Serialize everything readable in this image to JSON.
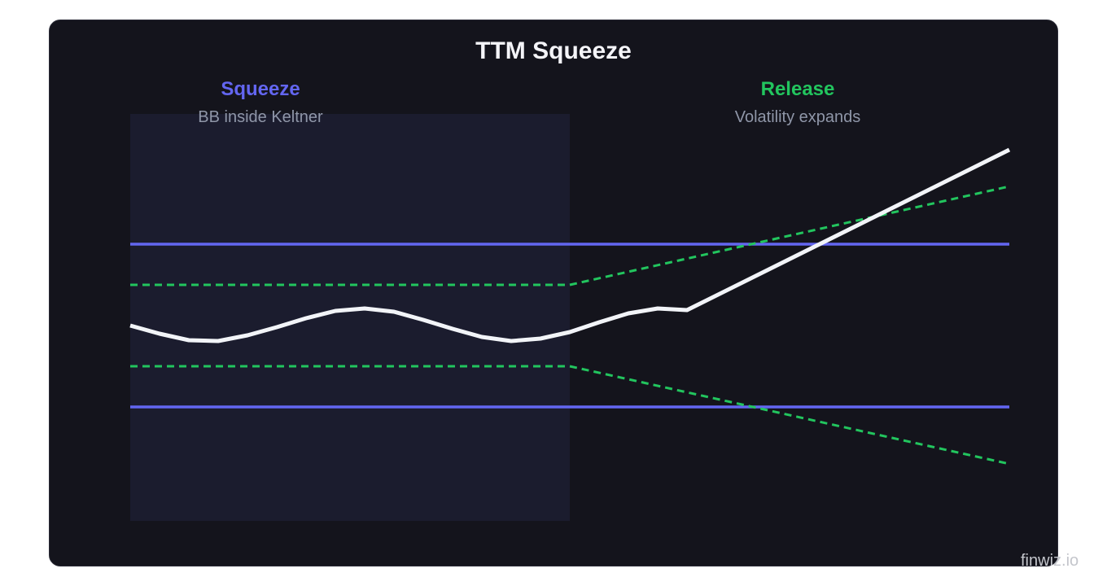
{
  "title": "TTM Squeeze",
  "squeeze": {
    "heading": "Squeeze",
    "subtitle": "BB inside Keltner"
  },
  "release": {
    "heading": "Release",
    "subtitle": "Volatility expands"
  },
  "watermark": "finwiz.io",
  "colors": {
    "background": "#14141c",
    "squeeze_zone": "#1b1c2e",
    "keltner": "#6366f1",
    "bollinger": "#22c55e",
    "price": "#f2f4f8"
  },
  "legend_semantics": {
    "solid_blue_lines": "Keltner channel",
    "dashed_green_lines": "Bollinger bands",
    "white_line": "price"
  }
}
